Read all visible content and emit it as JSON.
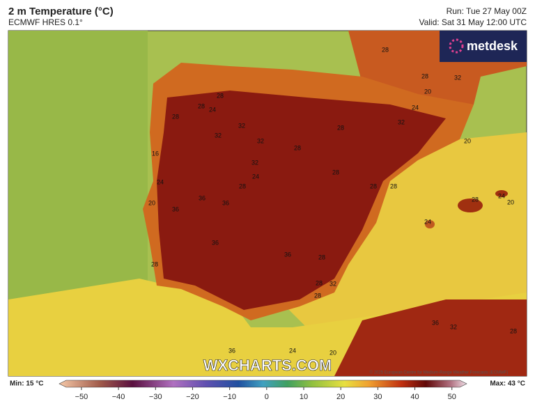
{
  "header": {
    "title": "2 m Temperature (°C)",
    "model": "ECMWF HRES 0.1°",
    "run": "Run: Tue 27 May 00Z",
    "valid": "Valid: Sat 31 May 12:00 UTC"
  },
  "brand": "metdesk",
  "watermark": "WXCHARTS.COM",
  "credit": "© 2025 European Centre for Medium-Range Weather Forecasts (ECMWF)",
  "contour_labels": [
    28,
    28,
    32,
    28,
    28,
    24,
    20,
    24,
    28,
    32,
    32,
    28,
    32,
    32,
    16,
    28,
    20,
    32,
    24,
    28,
    28,
    28,
    28,
    24,
    20,
    36,
    36,
    36,
    28,
    24,
    20,
    24,
    36,
    36,
    28,
    28,
    32,
    28,
    28,
    36,
    32,
    28,
    36,
    24,
    20
  ],
  "footer": {
    "min": "Min: 15 °C",
    "max": "Max: 43 °C"
  },
  "colorbar": {
    "range": [
      -56,
      54
    ],
    "ticks": [
      {
        "value": -50,
        "label": "−50"
      },
      {
        "value": -40,
        "label": "−40"
      },
      {
        "value": -30,
        "label": "−30"
      },
      {
        "value": -20,
        "label": "−20"
      },
      {
        "value": -10,
        "label": "−10"
      },
      0,
      10,
      20,
      30,
      40,
      50
    ]
  }
}
